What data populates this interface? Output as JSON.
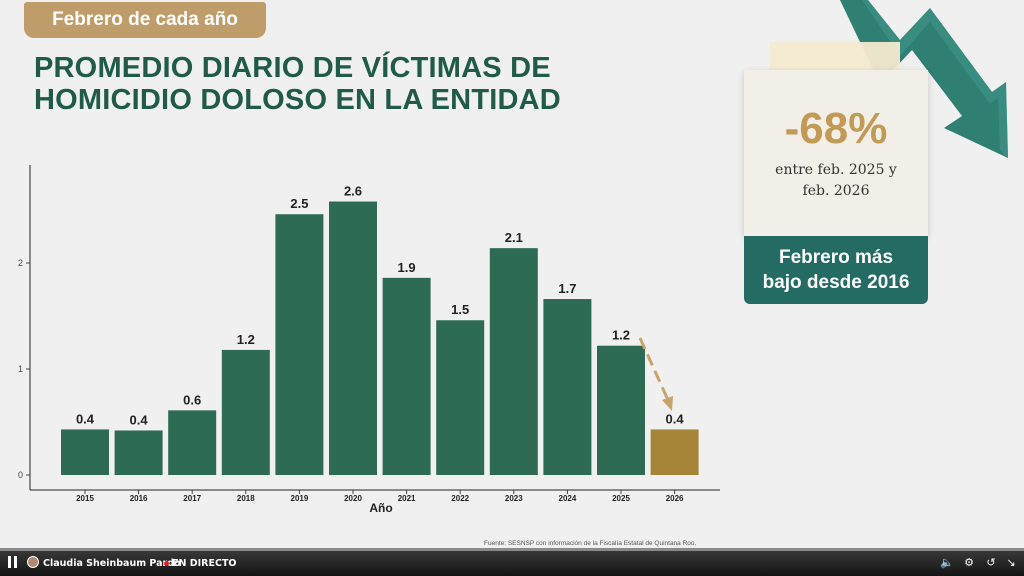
{
  "header": {
    "tag": "Febrero de cada año",
    "title_line1": "PROMEDIO DIARIO DE VÍCTIMAS DE",
    "title_line2": "HOMICIDIO DOLOSO EN LA ENTIDAD"
  },
  "card": {
    "percent": "-68%",
    "note_line1": "entre feb. 2025 y",
    "note_line2": "feb. 2026",
    "banner_line1": "Febrero más",
    "banner_line2": "bajo desde 2016"
  },
  "source": "Fuente: SESNSP con información de la Fiscalía Estatal de Quintana Roo.",
  "player": {
    "name": "Claudia Sheinbaum Pardo",
    "live": "EN DIRECTO"
  },
  "colors": {
    "bar": "#2e6b54",
    "highlight_bar": "#a68438",
    "arrow": "#c9a46a",
    "accent_teal": "#236b63",
    "title": "#1f5b48"
  },
  "chart_data": {
    "type": "bar",
    "categories": [
      "2015",
      "2016",
      "2017",
      "2018",
      "2019",
      "2020",
      "2021",
      "2022",
      "2023",
      "2024",
      "2025",
      "2026"
    ],
    "values": [
      0.43,
      0.42,
      0.61,
      1.18,
      2.46,
      2.58,
      1.86,
      1.46,
      2.14,
      1.66,
      1.22,
      0.43
    ],
    "value_labels": [
      "0.4",
      "0.4",
      "0.6",
      "1.2",
      "2.5",
      "2.6",
      "1.9",
      "1.5",
      "2.1",
      "1.7",
      "1.2",
      "0.4"
    ],
    "highlight_index": 11,
    "xlabel": "Año",
    "ylabel": "",
    "ylim": [
      0,
      3
    ],
    "yticks": [
      "0",
      "1",
      "2"
    ],
    "grid": false
  }
}
